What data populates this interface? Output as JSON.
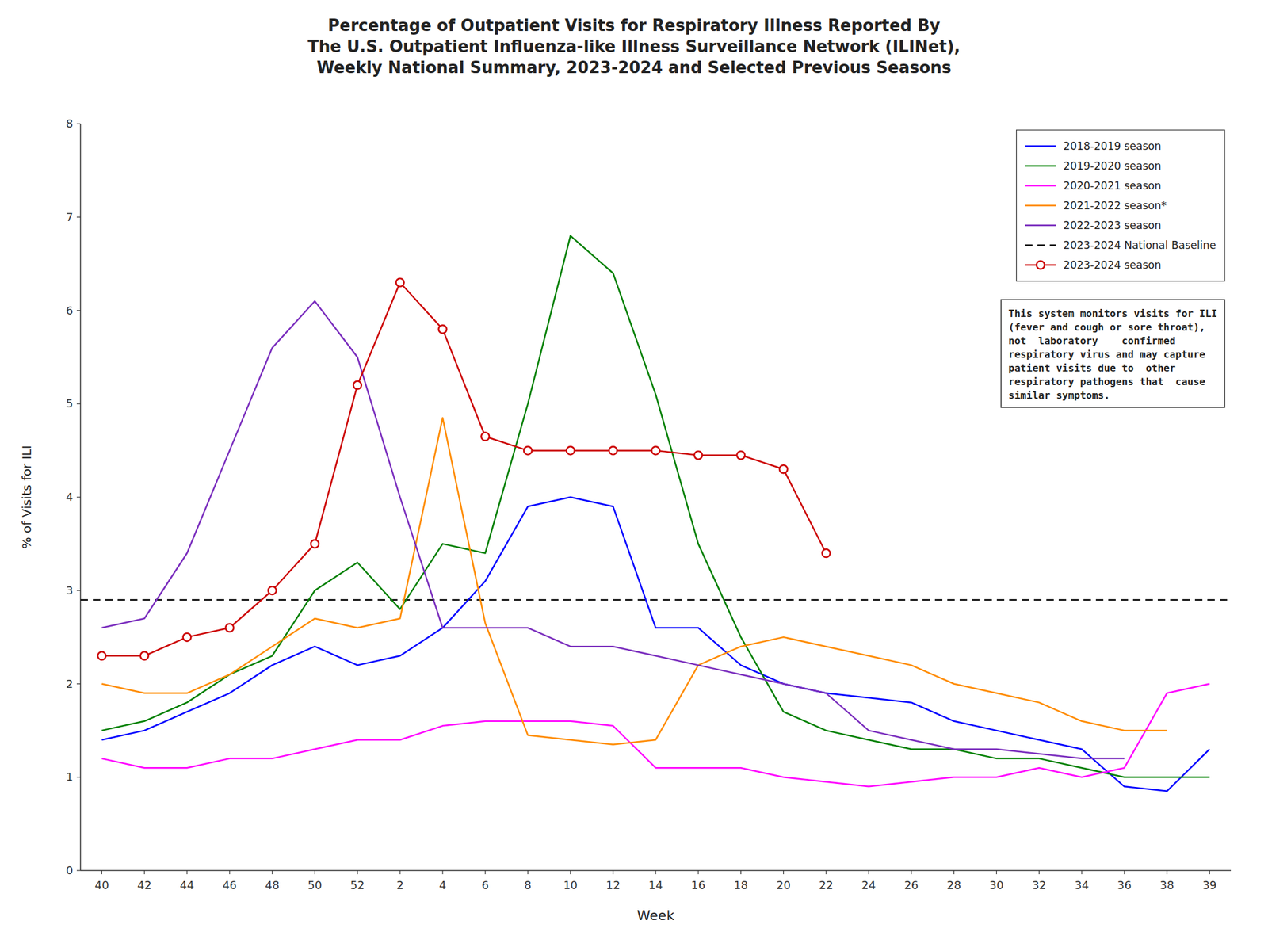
{
  "chart_data": {
    "type": "line",
    "title": "Percentage of Outpatient Visits for Respiratory Illness Reported By\nThe U.S. Outpatient Influenza-like Illness Surveillance Network (ILINet),\nWeekly National Summary, 2023-2024 and Selected Previous Seasons",
    "xlabel": "Week",
    "ylabel": "% of Visits for ILI",
    "categories": [
      "40",
      "42",
      "44",
      "46",
      "48",
      "50",
      "52",
      "2",
      "4",
      "6",
      "8",
      "10",
      "12",
      "14",
      "16",
      "18",
      "20",
      "22",
      "24",
      "26",
      "28",
      "30",
      "32",
      "34",
      "36",
      "38",
      "39"
    ],
    "series": [
      {
        "name": "2018-2019 season",
        "color": "#0000FF",
        "values": [
          1.4,
          1.5,
          1.7,
          1.9,
          2.2,
          2.4,
          2.2,
          2.3,
          2.6,
          3.1,
          3.9,
          4.0,
          3.9,
          2.6,
          2.6,
          2.2,
          2.0,
          1.9,
          1.85,
          1.8,
          1.6,
          1.5,
          1.4,
          1.3,
          0.9,
          0.85,
          1.3
        ]
      },
      {
        "name": "2019-2020 season",
        "color": "#008000",
        "values": [
          1.5,
          1.6,
          1.8,
          2.1,
          2.3,
          3.0,
          3.3,
          2.8,
          3.5,
          3.4,
          5.0,
          6.8,
          6.4,
          5.1,
          3.5,
          2.5,
          1.7,
          1.5,
          1.4,
          1.3,
          1.3,
          1.2,
          1.2,
          1.1,
          1.0,
          1.0,
          1.0
        ]
      },
      {
        "name": "2020-2021 season",
        "color": "#FF00FF",
        "values": [
          1.2,
          1.1,
          1.1,
          1.2,
          1.2,
          1.3,
          1.4,
          1.4,
          1.55,
          1.6,
          1.6,
          1.6,
          1.55,
          1.1,
          1.1,
          1.1,
          1.0,
          0.95,
          0.9,
          0.95,
          1.0,
          1.0,
          1.1,
          1.0,
          1.1,
          1.9,
          2.0
        ]
      },
      {
        "name": "2021-2022 season*",
        "color": "#FF8C00",
        "values": [
          2.0,
          1.9,
          1.9,
          2.1,
          2.4,
          2.7,
          2.6,
          2.7,
          4.85,
          2.65,
          1.45,
          1.4,
          1.35,
          1.4,
          2.2,
          2.4,
          2.5,
          2.4,
          2.3,
          2.2,
          2.0,
          1.9,
          1.8,
          1.6,
          1.5,
          1.5,
          null
        ]
      },
      {
        "name": "2022-2023 season",
        "color": "#7B2FBE",
        "values": [
          2.6,
          2.7,
          3.4,
          4.5,
          5.6,
          6.1,
          5.5,
          4.0,
          2.6,
          2.6,
          2.6,
          2.4,
          2.4,
          2.3,
          2.2,
          2.1,
          2.0,
          1.9,
          1.5,
          1.4,
          1.3,
          1.3,
          1.25,
          1.2,
          1.2,
          null,
          null
        ]
      },
      {
        "name": "2023-2024 season",
        "color": "#CC0000",
        "marker": "circle",
        "values": [
          2.3,
          2.3,
          2.5,
          2.6,
          3.0,
          3.5,
          5.2,
          6.3,
          5.8,
          4.65,
          4.5,
          4.5,
          4.5,
          4.5,
          4.45,
          4.45,
          4.3,
          3.4,
          null,
          null,
          null,
          null,
          null,
          null,
          null,
          null,
          null
        ]
      }
    ],
    "baseline": {
      "name": "2023-2024 National Baseline",
      "value": 2.9,
      "color": "#000000",
      "line_style": "dashed"
    },
    "ylim": [
      0,
      8
    ],
    "yticks": [
      0,
      1,
      2,
      3,
      4,
      5,
      6,
      7,
      8
    ],
    "annotation": "This system monitors visits for ILI\n(fever and cough or sore throat),\nnot  laboratory    confirmed\nrespiratory virus and may capture\npatient visits due to  other\nrespiratory pathogens that  cause\nsimilar symptoms.",
    "grid": false,
    "legend": "upper right"
  }
}
